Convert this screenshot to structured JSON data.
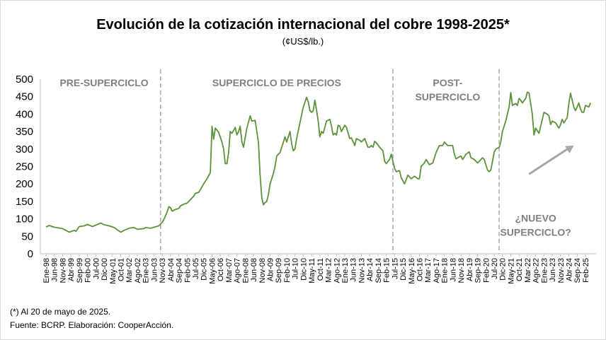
{
  "chart_data": {
    "type": "line",
    "title": "Evolución de la cotización internacional del cobre 1998-2025*",
    "subtitle": "(¢US$/lb.)",
    "xlabel": "",
    "ylabel": "",
    "ylim": [
      0,
      500
    ],
    "yticks": [
      0,
      50,
      100,
      150,
      200,
      250,
      300,
      350,
      400,
      450,
      500
    ],
    "grid": false,
    "line_color": "#5b9138",
    "x_start": "Ene-98",
    "x_end": "May-25",
    "xtick_labels": [
      "Ene-98",
      "Jun-98",
      "Nov-98",
      "Abr-99",
      "Sep-99",
      "Feb-00",
      "Jul-00",
      "Dic-00",
      "May-01",
      "Oct-01",
      "Mar-02",
      "Ago-02",
      "Ene-03",
      "Jun-03",
      "Nov-03",
      "Abr-04",
      "Sep-04",
      "Feb-05",
      "Jul-05",
      "Dic-05",
      "May-06",
      "Oct-06",
      "Mar-07",
      "Ago-07",
      "Ene-08",
      "Jun-08",
      "Nov-08",
      "Abr-09",
      "Sep-09",
      "Feb-10",
      "Jul-10",
      "Dic-10",
      "May-11",
      "Oct-11",
      "Mar-12",
      "Ago-12",
      "Ene-13",
      "Jun-13",
      "Nov-13",
      "Abr-14",
      "Sep-14",
      "Feb-15",
      "Jul-15",
      "Dic-15",
      "May-16",
      "Oct-16",
      "Mar-17",
      "Ago-17",
      "Ene-18",
      "Jun-18",
      "Nov-18",
      "Abr-19",
      "Sep-19",
      "Feb-20",
      "Jul-20",
      "Dic-20",
      "May-21",
      "Oct-21",
      "Mar-22",
      "Ago-22",
      "Ene-23",
      "Jun-23",
      "Nov-23",
      "Abr-24",
      "Sep-24",
      "Feb-25"
    ],
    "series": [
      {
        "name": "",
        "anchors": [
          [
            "Ene-98",
            77
          ],
          [
            "Mar-98",
            81
          ],
          [
            "Jun-98",
            76
          ],
          [
            "Nov-98",
            72
          ],
          [
            "Mar-99",
            62
          ],
          [
            "Jun-99",
            67
          ],
          [
            "Jul-99",
            64
          ],
          [
            "Sep-99",
            78
          ],
          [
            "Dic-99",
            80
          ],
          [
            "Feb-00",
            84
          ],
          [
            "May-00",
            78
          ],
          [
            "Ago-00",
            84
          ],
          [
            "Oct-00",
            88
          ],
          [
            "Dic-00",
            83
          ],
          [
            "Mar-01",
            80
          ],
          [
            "Jun-01",
            75
          ],
          [
            "Oct-01",
            62
          ],
          [
            "Dic-01",
            67
          ],
          [
            "Mar-02",
            73
          ],
          [
            "Jun-02",
            75
          ],
          [
            "Ago-02",
            70
          ],
          [
            "Dic-02",
            72
          ],
          [
            "Ene-03",
            75
          ],
          [
            "Abr-03",
            73
          ],
          [
            "Jun-03",
            76
          ],
          [
            "Sep-03",
            80
          ],
          [
            "Nov-03",
            90
          ],
          [
            "Dic-03",
            98
          ],
          [
            "Feb-04",
            120
          ],
          [
            "Mar-04",
            135
          ],
          [
            "Abr-04",
            132
          ],
          [
            "May-04",
            122
          ],
          [
            "Jul-04",
            127
          ],
          [
            "Sep-04",
            130
          ],
          [
            "Oct-04",
            137
          ],
          [
            "Dic-04",
            142
          ],
          [
            "Feb-05",
            145
          ],
          [
            "Abr-05",
            155
          ],
          [
            "Jun-05",
            165
          ],
          [
            "Jul-05",
            173
          ],
          [
            "Sep-05",
            176
          ],
          [
            "Dic-05",
            200
          ],
          [
            "Feb-06",
            215
          ],
          [
            "Abr-06",
            232
          ],
          [
            "May-06",
            365
          ],
          [
            "Jun-06",
            328
          ],
          [
            "Jul-06",
            360
          ],
          [
            "Sep-06",
            348
          ],
          [
            "Nov-06",
            320
          ],
          [
            "Dic-06",
            300
          ],
          [
            "Ene-07",
            258
          ],
          [
            "Feb-07",
            258
          ],
          [
            "Mar-07",
            290
          ],
          [
            "Abr-07",
            350
          ],
          [
            "May-07",
            345
          ],
          [
            "Jul-07",
            362
          ],
          [
            "Ago-07",
            340
          ],
          [
            "Sep-07",
            350
          ],
          [
            "Oct-07",
            365
          ],
          [
            "Nov-07",
            320
          ],
          [
            "Dic-07",
            305
          ],
          [
            "Feb-08",
            360
          ],
          [
            "Abr-08",
            395
          ],
          [
            "May-08",
            380
          ],
          [
            "Jul-08",
            382
          ],
          [
            "Ago-08",
            350
          ],
          [
            "Sep-08",
            318
          ],
          [
            "Oct-08",
            225
          ],
          [
            "Nov-08",
            160
          ],
          [
            "Dic-08",
            140
          ],
          [
            "Ene-09",
            147
          ],
          [
            "Feb-09",
            150
          ],
          [
            "Mar-09",
            170
          ],
          [
            "Abr-09",
            200
          ],
          [
            "Jun-09",
            230
          ],
          [
            "Jul-09",
            250
          ],
          [
            "Ago-09",
            280
          ],
          [
            "Oct-09",
            290
          ],
          [
            "Dic-09",
            320
          ],
          [
            "Ene-10",
            335
          ],
          [
            "Feb-10",
            320
          ],
          [
            "Abr-10",
            350
          ],
          [
            "May-10",
            315
          ],
          [
            "Jun-10",
            295
          ],
          [
            "Jul-10",
            300
          ],
          [
            "Ago-10",
            330
          ],
          [
            "Oct-10",
            375
          ],
          [
            "Dic-10",
            420
          ],
          [
            "Feb-11",
            448
          ],
          [
            "Mar-11",
            435
          ],
          [
            "Abr-11",
            410
          ],
          [
            "May-11",
            405
          ],
          [
            "Jun-11",
            410
          ],
          [
            "Jul-11",
            440
          ],
          [
            "Ago-11",
            410
          ],
          [
            "Sep-11",
            380
          ],
          [
            "Oct-11",
            335
          ],
          [
            "Nov-11",
            350
          ],
          [
            "Dic-11",
            345
          ],
          [
            "Feb-12",
            380
          ],
          [
            "Abr-12",
            385
          ],
          [
            "May-12",
            365
          ],
          [
            "Jun-12",
            340
          ],
          [
            "Jul-12",
            345
          ],
          [
            "Ago-12",
            340
          ],
          [
            "Sep-12",
            368
          ],
          [
            "Oct-12",
            365
          ],
          [
            "Nov-12",
            350
          ],
          [
            "Ene-13",
            368
          ],
          [
            "Feb-13",
            362
          ],
          [
            "Abr-13",
            330
          ],
          [
            "May-13",
            332
          ],
          [
            "Jul-13",
            310
          ],
          [
            "Ago-13",
            330
          ],
          [
            "Oct-13",
            325
          ],
          [
            "Nov-13",
            320
          ],
          [
            "Dic-13",
            325
          ],
          [
            "Ene-14",
            330
          ],
          [
            "Mar-14",
            305
          ],
          [
            "Abr-14",
            305
          ],
          [
            "May-14",
            310
          ],
          [
            "Jun-14",
            305
          ],
          [
            "Jul-14",
            322
          ],
          [
            "Ago-14",
            318
          ],
          [
            "Oct-14",
            305
          ],
          [
            "Dic-14",
            295
          ],
          [
            "Ene-15",
            265
          ],
          [
            "Feb-15",
            258
          ],
          [
            "Abr-15",
            270
          ],
          [
            "May-15",
            285
          ],
          [
            "Jun-15",
            265
          ],
          [
            "Jul-15",
            245
          ],
          [
            "Ago-15",
            235
          ],
          [
            "Oct-15",
            238
          ],
          [
            "Nov-15",
            218
          ],
          [
            "Ene-16",
            200
          ],
          [
            "Mar-16",
            225
          ],
          [
            "May-16",
            215
          ],
          [
            "Jul-16",
            222
          ],
          [
            "Sep-16",
            215
          ],
          [
            "Oct-16",
            215
          ],
          [
            "Nov-16",
            250
          ],
          [
            "Ene-17",
            260
          ],
          [
            "Feb-17",
            270
          ],
          [
            "Abr-17",
            255
          ],
          [
            "Jun-17",
            260
          ],
          [
            "Ago-17",
            290
          ],
          [
            "Oct-17",
            310
          ],
          [
            "Dic-17",
            310
          ],
          [
            "Ene-18",
            320
          ],
          [
            "Mar-18",
            310
          ],
          [
            "Jun-18",
            310
          ],
          [
            "Jul-18",
            285
          ],
          [
            "Ago-18",
            272
          ],
          [
            "Nov-18",
            280
          ],
          [
            "Dic-18",
            270
          ],
          [
            "Feb-19",
            285
          ],
          [
            "Abr-19",
            292
          ],
          [
            "May-19",
            275
          ],
          [
            "Jul-19",
            270
          ],
          [
            "Sep-19",
            260
          ],
          [
            "Dic-19",
            275
          ],
          [
            "Ene-20",
            270
          ],
          [
            "Mar-20",
            240
          ],
          [
            "Abr-20",
            235
          ],
          [
            "May-20",
            240
          ],
          [
            "Jun-20",
            265
          ],
          [
            "Jul-20",
            290
          ],
          [
            "Ago-20",
            300
          ],
          [
            "Oct-20",
            305
          ],
          [
            "Nov-20",
            320
          ],
          [
            "Dic-20",
            350
          ],
          [
            "Feb-21",
            380
          ],
          [
            "Abr-21",
            420
          ],
          [
            "May-21",
            462
          ],
          [
            "Jun-21",
            425
          ],
          [
            "Ago-21",
            430
          ],
          [
            "Sep-21",
            425
          ],
          [
            "Oct-21",
            445
          ],
          [
            "Nov-21",
            440
          ],
          [
            "Dic-21",
            432
          ],
          [
            "Feb-22",
            445
          ],
          [
            "Mar-22",
            463
          ],
          [
            "Abr-22",
            460
          ],
          [
            "May-22",
            430
          ],
          [
            "Jun-22",
            400
          ],
          [
            "Jul-22",
            340
          ],
          [
            "Ago-22",
            360
          ],
          [
            "Oct-22",
            345
          ],
          [
            "Nov-22",
            365
          ],
          [
            "Ene-23",
            405
          ],
          [
            "Mar-23",
            400
          ],
          [
            "Abr-23",
            395
          ],
          [
            "May-23",
            370
          ],
          [
            "Jun-23",
            380
          ],
          [
            "Ago-23",
            375
          ],
          [
            "Oct-23",
            360
          ],
          [
            "Nov-23",
            370
          ],
          [
            "Dic-23",
            385
          ],
          [
            "Ene-24",
            375
          ],
          [
            "Mar-24",
            390
          ],
          [
            "Abr-24",
            430
          ],
          [
            "May-24",
            460
          ],
          [
            "Jun-24",
            440
          ],
          [
            "Jul-24",
            420
          ],
          [
            "Ago-24",
            410
          ],
          [
            "Sep-24",
            420
          ],
          [
            "Oct-24",
            432
          ],
          [
            "Nov-24",
            415
          ],
          [
            "Dic-24",
            405
          ],
          [
            "Ene-25",
            405
          ],
          [
            "Feb-25",
            425
          ],
          [
            "Abr-25",
            420
          ],
          [
            "May-25",
            432
          ]
        ]
      }
    ],
    "annotations": {
      "dividers": [
        "Oct-03",
        "Jun-15",
        "Oct-20"
      ],
      "phase_labels": [
        {
          "lines": [
            "PRE-SUPERCICLO"
          ],
          "at": "Dic-00",
          "y": 490
        },
        {
          "lines": [
            "SUPERCICLO DE PRECIOS"
          ],
          "at": "Ago-09",
          "y": 490
        },
        {
          "lines": [
            "POST-",
            "SUPERCICLO"
          ],
          "at": "Mar-18",
          "y": 490
        },
        {
          "lines": [
            "¿NUEVO",
            "SUPERCICLO?"
          ],
          "at": "Ago-22",
          "y": 102
        }
      ],
      "arrow": {
        "from": [
          "Abr-22",
          228
        ],
        "to": [
          "Jul-24",
          310
        ]
      }
    }
  },
  "notes": {
    "footnote": "(*) Al 20  de mayo de 2025.",
    "source": "Fuente: BCRP. Elaboración: CooperAcción."
  }
}
